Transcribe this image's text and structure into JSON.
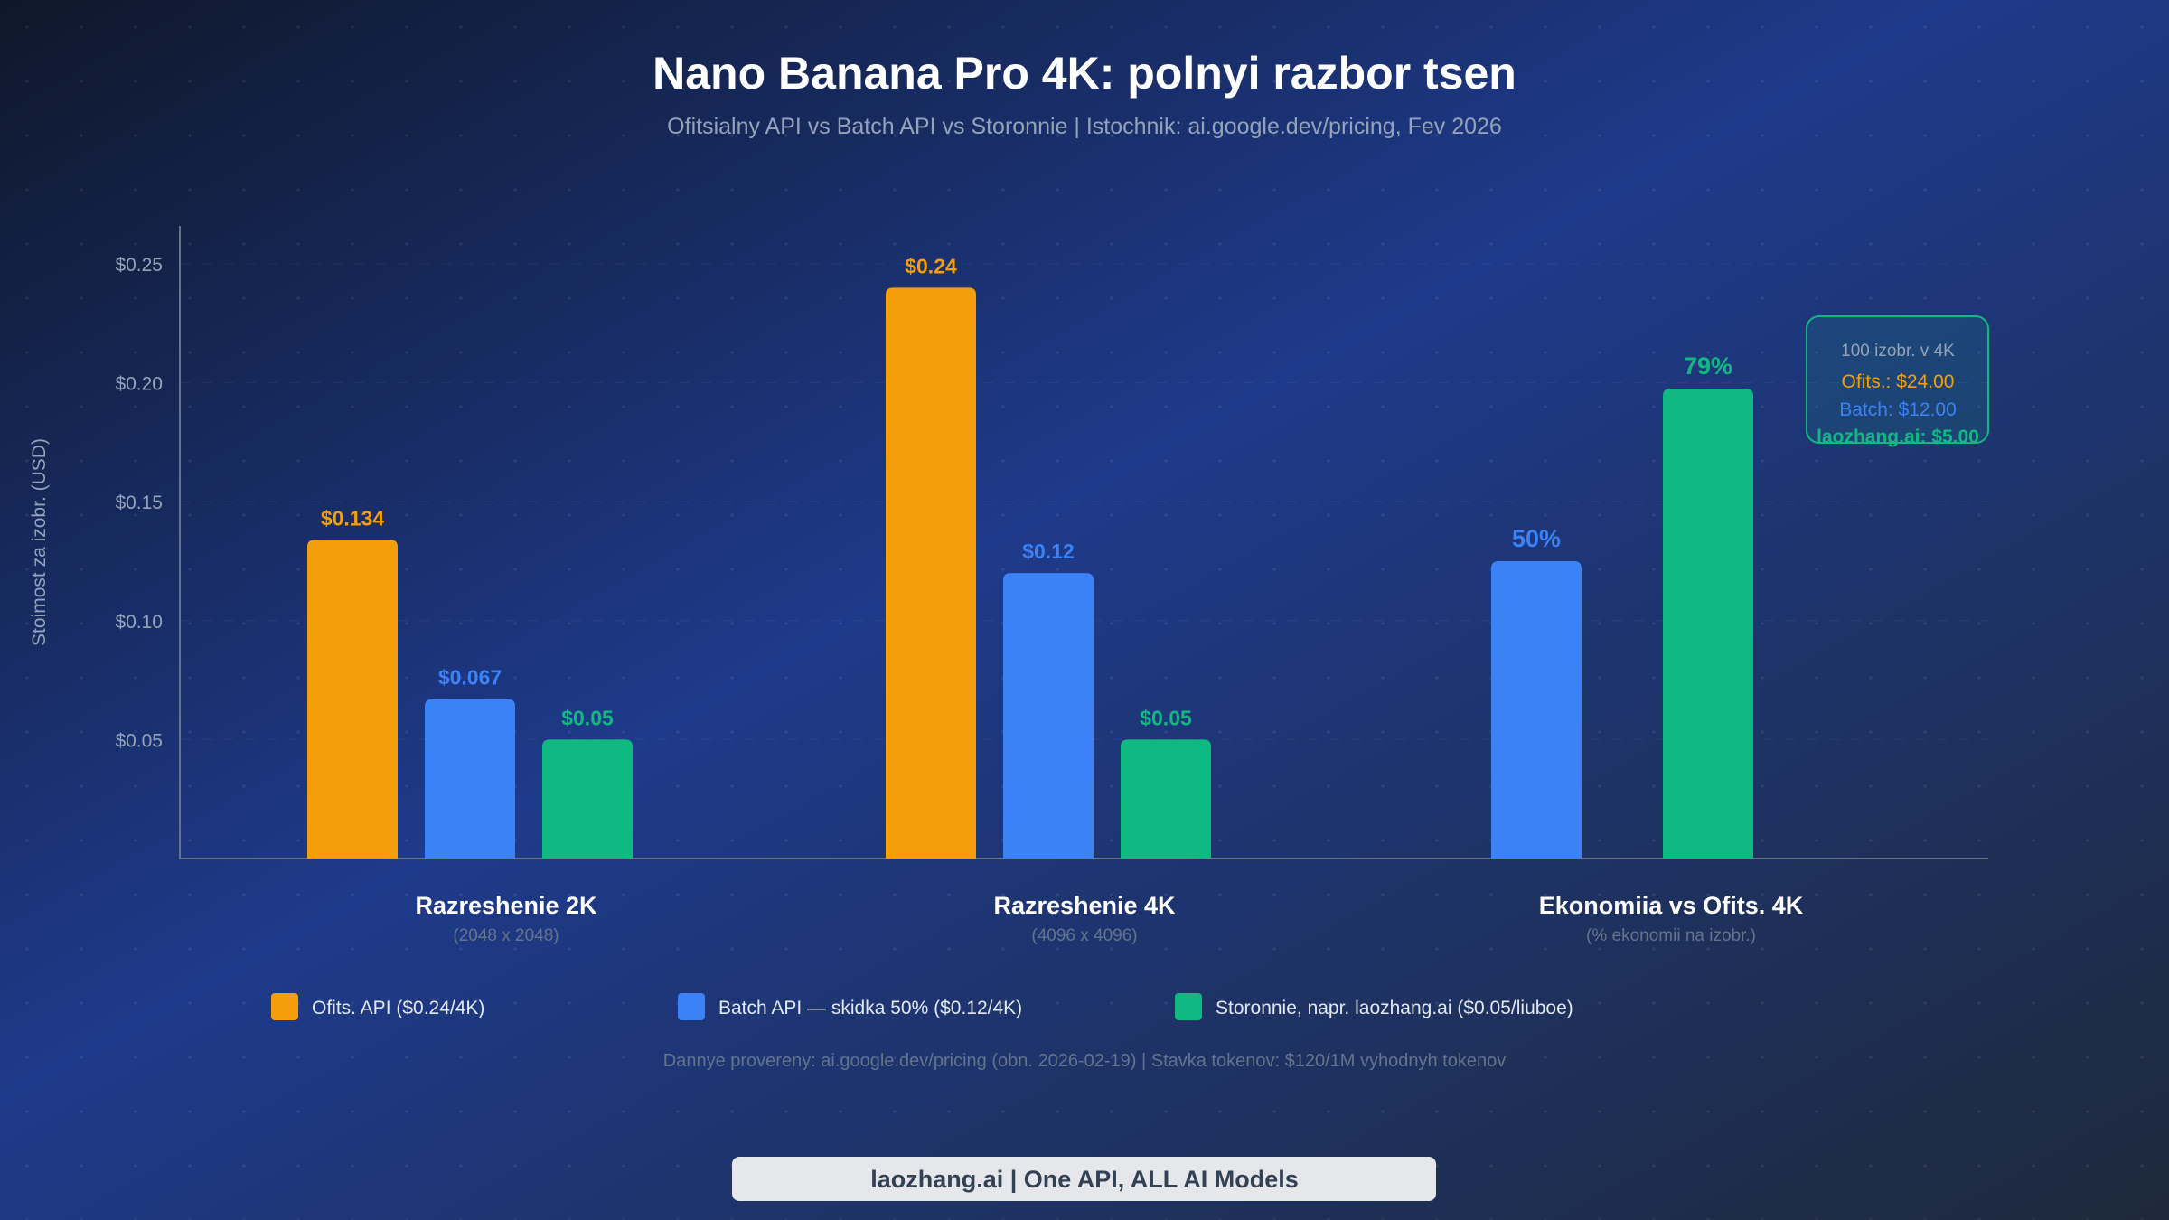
{
  "title": "Nano Banana Pro 4K: polnyi razbor tsen",
  "subtitle": "Ofitsialny API vs Batch API vs Storonnie | Istochnik: ai.google.dev/pricing, Fev 2026",
  "colors": {
    "official": "#f59e0b",
    "batch": "#3b82f6",
    "third_party": "#10b981"
  },
  "chart_data": {
    "type": "bar",
    "ylabel": "Stoimost za izobr. (USD)",
    "ylim": [
      0,
      0.26
    ],
    "yticks": [
      "$0.05",
      "$0.10",
      "$0.15",
      "$0.20",
      "$0.25"
    ],
    "ytick_values": [
      0.05,
      0.1,
      0.15,
      0.2,
      0.25
    ],
    "grid": true,
    "legend_placement": "bottom",
    "groups": [
      {
        "label": "Razreshenie 2K",
        "sublabel": "(2048 x 2048)",
        "bars": [
          {
            "series": "official",
            "value": 0.134,
            "label": "$0.134"
          },
          {
            "series": "batch",
            "value": 0.067,
            "label": "$0.067"
          },
          {
            "series": "third_party",
            "value": 0.05,
            "label": "$0.05"
          }
        ]
      },
      {
        "label": "Razreshenie 4K",
        "sublabel": "(4096 x 4096)",
        "bars": [
          {
            "series": "official",
            "value": 0.24,
            "label": "$0.24"
          },
          {
            "series": "batch",
            "value": 0.12,
            "label": "$0.12"
          },
          {
            "series": "third_party",
            "value": 0.05,
            "label": "$0.05"
          }
        ]
      },
      {
        "label": "Ekonomiia vs Ofits. 4K",
        "sublabel": "(% ekonomii na izobr.)",
        "bars": [
          {
            "series": "batch",
            "percent": 50,
            "label": "50%"
          },
          {
            "series": "third_party",
            "percent": 79,
            "label": "79%"
          }
        ]
      }
    ],
    "legend": [
      {
        "series": "official",
        "label": "Ofits. API ($0.24/4K)"
      },
      {
        "series": "batch",
        "label": "Batch API — skidka 50% ($0.12/4K)"
      },
      {
        "series": "third_party",
        "label": "Storonnie, napr. laozhang.ai ($0.05/liuboe)"
      }
    ],
    "annotation": {
      "title": "100 izobr. v 4K",
      "lines": [
        {
          "series": "official",
          "text": "Ofits.: $24.00"
        },
        {
          "series": "batch",
          "text": "Batch: $12.00"
        },
        {
          "series": "third_party",
          "text": "laozhang.ai: $5.00"
        }
      ]
    }
  },
  "footnote": "Dannye provereny: ai.google.dev/pricing (obn. 2026-02-19) | Stavka tokenov: $120/1M vyhodnyh tokenov",
  "footer_banner": "laozhang.ai | One API, ALL AI Models"
}
